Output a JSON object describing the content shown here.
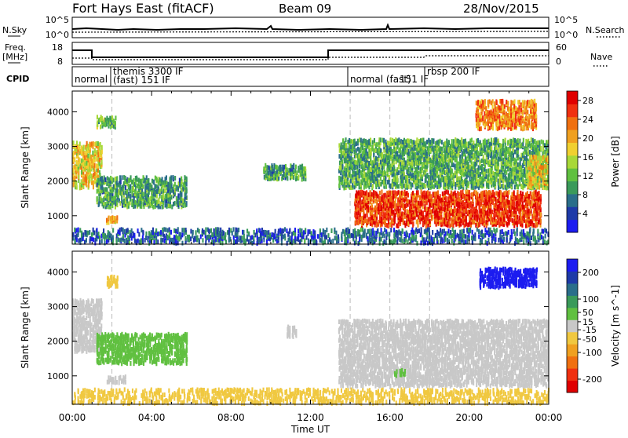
{
  "header": {
    "station": "Fort Hays East (fitACF)",
    "beam": "Beam 09",
    "date": "28/Nov/2015"
  },
  "panels": {
    "nsky_label": "N.Sky",
    "nsearch_label": "N.Search",
    "noise_ticks_left": [
      "10^5",
      "10^0"
    ],
    "noise_ticks_right": [
      "10^5",
      "10^0"
    ],
    "freq_label_line1": "Freq.",
    "freq_label_line2": "[MHz]",
    "freq_ticks": [
      "18",
      "8"
    ],
    "nave_label": "Nave",
    "nave_ticks": [
      "60",
      "0"
    ],
    "cpid_label": "CPID",
    "cpid_segments": [
      "normal",
      "themis 3300 IF",
      "(fast) 151 IF",
      "normal (fast)",
      "151 IF",
      "rbsp 200 IF"
    ]
  },
  "chart_data": [
    {
      "type": "heatmap",
      "title": "",
      "xlabel": "",
      "ylabel": "Slant Range [km]",
      "xlim": [
        0,
        24
      ],
      "ylim": [
        180,
        4600
      ],
      "yticks": [
        1000,
        2000,
        3000,
        4000
      ],
      "colorbar": {
        "label": "Power [dB]",
        "ticks": [
          4,
          8,
          12,
          16,
          20,
          24,
          28
        ],
        "range": [
          0,
          30
        ],
        "colors": [
          "#1c1cf0",
          "#1e3aa8",
          "#2a6e8a",
          "#3a9a5a",
          "#60c040",
          "#a8d838",
          "#f0d030",
          "#f0a020",
          "#f07010",
          "#f03010",
          "#e00000"
        ]
      },
      "echo_regions": [
        {
          "t0": 0.0,
          "t1": 1.5,
          "r0": 1800,
          "r1": 3100,
          "value": 18
        },
        {
          "t0": 1.2,
          "t1": 2.2,
          "r0": 3550,
          "r1": 3850,
          "value": 12
        },
        {
          "t0": 1.2,
          "t1": 5.8,
          "r0": 1250,
          "r1": 2100,
          "value": 10
        },
        {
          "t0": 1.7,
          "t1": 2.3,
          "r0": 800,
          "r1": 1000,
          "value": 20
        },
        {
          "t0": 0.0,
          "t1": 24.0,
          "r0": 200,
          "r1": 620,
          "value": 6
        },
        {
          "t0": 9.6,
          "t1": 11.8,
          "r0": 2050,
          "r1": 2450,
          "value": 10
        },
        {
          "t0": 13.4,
          "t1": 24.0,
          "r0": 1800,
          "r1": 3200,
          "value": 11
        },
        {
          "t0": 14.2,
          "t1": 23.6,
          "r0": 700,
          "r1": 1700,
          "value": 26
        },
        {
          "t0": 20.3,
          "t1": 23.4,
          "r0": 3500,
          "r1": 4300,
          "value": 22
        },
        {
          "t0": 22.9,
          "t1": 24.0,
          "r0": 1800,
          "r1": 2700,
          "value": 18
        }
      ]
    },
    {
      "type": "heatmap",
      "title": "",
      "xlabel": "Time UT",
      "ylabel": "Slant Range [km]",
      "xlim": [
        0,
        24
      ],
      "ylim": [
        180,
        4600
      ],
      "xticks": [
        "00:00",
        "04:00",
        "08:00",
        "12:00",
        "16:00",
        "20:00",
        "00:00"
      ],
      "yticks": [
        1000,
        2000,
        3000,
        4000
      ],
      "colorbar": {
        "label": "Velocity [m s^-1]",
        "ticks": [
          200,
          100,
          50,
          15,
          -15,
          -50,
          -100,
          -200
        ],
        "range": [
          -250,
          250
        ],
        "colors": [
          "#e00000",
          "#f03010",
          "#f07010",
          "#f0a020",
          "#f0c840",
          "#c8c8c8",
          "#60c040",
          "#3a9a5a",
          "#2a6e8a",
          "#1e3aa8",
          "#1c1cf0"
        ]
      },
      "echo_regions": [
        {
          "t0": 0.0,
          "t1": 1.5,
          "r0": 1700,
          "r1": 3200,
          "value": 0
        },
        {
          "t0": 1.2,
          "t1": 5.8,
          "r0": 1350,
          "r1": 2200,
          "value": 40
        },
        {
          "t0": 1.7,
          "t1": 2.3,
          "r0": 3550,
          "r1": 3850,
          "value": -40
        },
        {
          "t0": 1.7,
          "t1": 2.7,
          "r0": 800,
          "r1": 1000,
          "value": 0
        },
        {
          "t0": 0.0,
          "t1": 24.0,
          "r0": 200,
          "r1": 620,
          "value": -40
        },
        {
          "t0": 10.8,
          "t1": 11.3,
          "r0": 2100,
          "r1": 2400,
          "value": 0
        },
        {
          "t0": 13.4,
          "t1": 24.0,
          "r0": 700,
          "r1": 2600,
          "value": 0
        },
        {
          "t0": 16.2,
          "t1": 16.8,
          "r0": 1000,
          "r1": 1200,
          "value": 40
        },
        {
          "t0": 20.5,
          "t1": 23.4,
          "r0": 3550,
          "r1": 4100,
          "value": 220
        }
      ]
    }
  ]
}
